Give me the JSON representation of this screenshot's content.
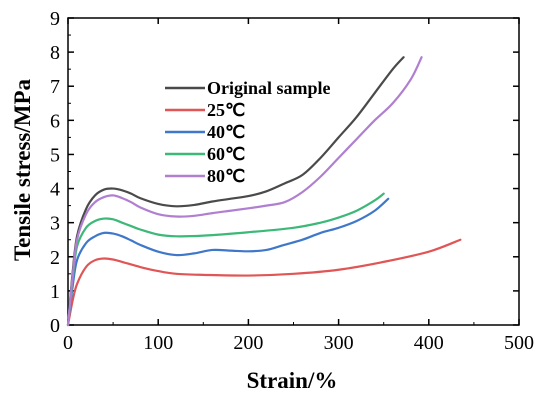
{
  "chart_data": {
    "type": "line",
    "title": "",
    "xlabel": "Strain/%",
    "ylabel": "Tensile stress/MPa",
    "xlim": [
      0,
      500
    ],
    "ylim": [
      0,
      9
    ],
    "xticks": [
      0,
      100,
      200,
      300,
      400,
      500
    ],
    "yticks": [
      0,
      1,
      2,
      3,
      4,
      5,
      6,
      7,
      8,
      9
    ],
    "grid": false,
    "legend_position": "upper-left",
    "series": [
      {
        "name": "Original sample",
        "color": "#4a4a4a",
        "x": [
          0,
          5,
          10,
          20,
          30,
          40,
          50,
          60,
          70,
          80,
          100,
          120,
          140,
          160,
          180,
          200,
          220,
          240,
          260,
          280,
          300,
          320,
          340,
          360,
          372
        ],
        "y": [
          0,
          1.5,
          2.6,
          3.4,
          3.8,
          3.97,
          4.0,
          3.95,
          3.85,
          3.72,
          3.55,
          3.48,
          3.52,
          3.62,
          3.7,
          3.78,
          3.92,
          4.15,
          4.4,
          4.9,
          5.5,
          6.1,
          6.8,
          7.5,
          7.85
        ]
      },
      {
        "name": "25℃",
        "color": "#e05555",
        "x": [
          0,
          5,
          10,
          20,
          30,
          40,
          50,
          60,
          80,
          100,
          120,
          150,
          200,
          250,
          300,
          350,
          400,
          435
        ],
        "y": [
          0,
          0.7,
          1.2,
          1.7,
          1.9,
          1.95,
          1.92,
          1.85,
          1.7,
          1.58,
          1.5,
          1.47,
          1.45,
          1.5,
          1.62,
          1.85,
          2.15,
          2.5
        ]
      },
      {
        "name": "40℃",
        "color": "#3f78c8",
        "x": [
          0,
          5,
          10,
          20,
          30,
          40,
          50,
          60,
          70,
          80,
          100,
          120,
          140,
          160,
          180,
          200,
          220,
          240,
          260,
          280,
          300,
          320,
          340,
          355
        ],
        "y": [
          0,
          1.1,
          1.9,
          2.4,
          2.6,
          2.7,
          2.68,
          2.6,
          2.48,
          2.35,
          2.15,
          2.05,
          2.1,
          2.2,
          2.18,
          2.16,
          2.2,
          2.35,
          2.5,
          2.7,
          2.85,
          3.05,
          3.35,
          3.7
        ]
      },
      {
        "name": "60℃",
        "color": "#3cb878",
        "x": [
          0,
          5,
          10,
          20,
          30,
          40,
          50,
          60,
          70,
          80,
          100,
          120,
          150,
          200,
          250,
          280,
          300,
          320,
          340,
          350
        ],
        "y": [
          0,
          1.3,
          2.3,
          2.85,
          3.05,
          3.12,
          3.1,
          3.0,
          2.9,
          2.8,
          2.65,
          2.6,
          2.62,
          2.72,
          2.85,
          3.0,
          3.15,
          3.35,
          3.65,
          3.85
        ]
      },
      {
        "name": "80℃",
        "color": "#b07fd0",
        "x": [
          0,
          5,
          10,
          20,
          30,
          40,
          50,
          60,
          70,
          80,
          100,
          120,
          140,
          160,
          180,
          200,
          220,
          240,
          260,
          280,
          300,
          320,
          340,
          360,
          380,
          392
        ],
        "y": [
          0,
          1.4,
          2.5,
          3.25,
          3.6,
          3.75,
          3.8,
          3.72,
          3.6,
          3.45,
          3.25,
          3.18,
          3.2,
          3.28,
          3.35,
          3.42,
          3.5,
          3.6,
          3.9,
          4.35,
          4.9,
          5.45,
          6.0,
          6.5,
          7.2,
          7.85
        ]
      }
    ]
  }
}
